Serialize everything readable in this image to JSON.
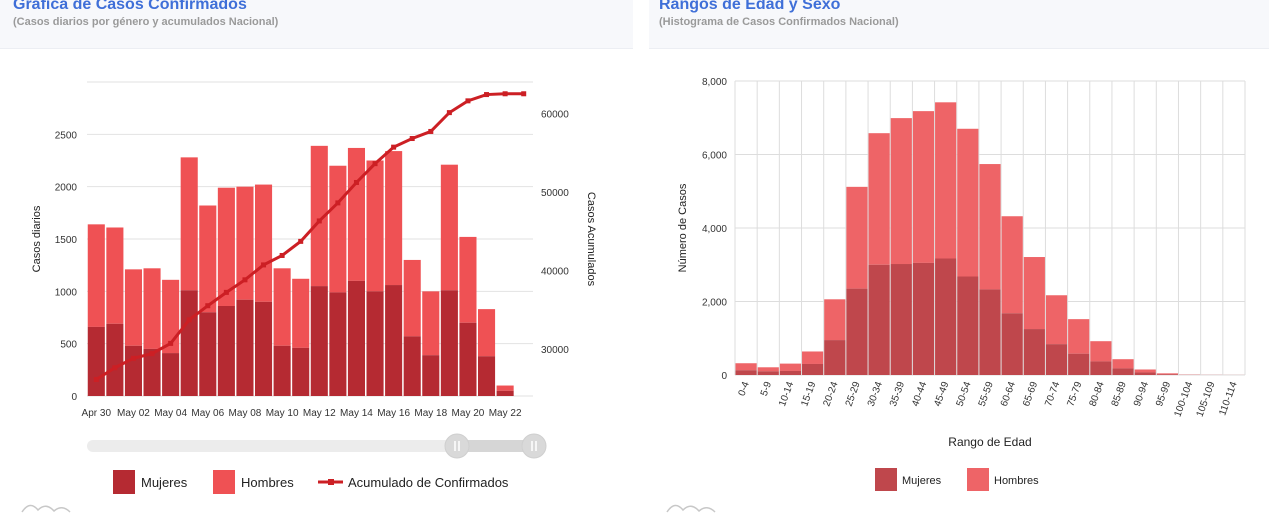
{
  "left_panel": {
    "title": "Gráfica de Casos Confirmados",
    "subtitle": "(Casos diarios por género y acumulados Nacional)"
  },
  "right_panel": {
    "title": "Rangos de Edad y Sexo",
    "subtitle": "(Histograma de Casos Confirmados Nacional)"
  },
  "chart_data": [
    {
      "type": "bar",
      "stacked": true,
      "categories": [
        "Apr 30",
        "May 01",
        "May 02",
        "May 03",
        "May 04",
        "May 05",
        "May 06",
        "May 07",
        "May 08",
        "May 09",
        "May 10",
        "May 11",
        "May 12",
        "May 13",
        "May 14",
        "May 15",
        "May 16",
        "May 17",
        "May 18",
        "May 19",
        "May 20",
        "May 21",
        "May 22",
        "May 23"
      ],
      "x_tick_labels": [
        "Apr 30",
        "May 02",
        "May 04",
        "May 06",
        "May 08",
        "May 10",
        "May 12",
        "May 14",
        "May 16",
        "May 18",
        "May 20",
        "May 22"
      ],
      "series": [
        {
          "name": "Mujeres",
          "color": "#b52a32",
          "values": [
            660,
            690,
            480,
            450,
            410,
            1010,
            800,
            860,
            920,
            900,
            480,
            460,
            1050,
            990,
            1100,
            1000,
            1060,
            570,
            390,
            1010,
            700,
            380,
            50,
            0
          ]
        },
        {
          "name": "Hombres",
          "color": "#ef5154",
          "values": [
            980,
            920,
            730,
            770,
            700,
            1270,
            1020,
            1130,
            1080,
            1120,
            740,
            660,
            1340,
            1210,
            1270,
            1250,
            1280,
            730,
            610,
            1200,
            820,
            450,
            50,
            0
          ]
        },
        {
          "name": "Acumulado de Confirmados",
          "type": "line",
          "axis": "right",
          "color": "#cc1f24",
          "values": [
            26100,
            27600,
            28800,
            29400,
            30700,
            33700,
            35500,
            37200,
            38800,
            40700,
            41900,
            43700,
            46300,
            48600,
            51200,
            53600,
            55700,
            56800,
            57700,
            60100,
            61600,
            62400,
            62500,
            62500
          ]
        }
      ],
      "ylabel": "Casos diarios",
      "ylim": [
        0,
        3000
      ],
      "yticks": [
        0,
        500,
        1000,
        1500,
        2000,
        2500
      ],
      "ylabel_right": "Casos Acumulados",
      "ylim_right": [
        24000,
        64000
      ],
      "yticks_right": [
        30000,
        40000,
        50000,
        60000
      ],
      "grid": true,
      "legend": "bottom",
      "legend_items": [
        "Mujeres",
        "Hombres",
        "Acumulado de Confirmados"
      ],
      "range_slider": true
    },
    {
      "type": "bar",
      "stacked": true,
      "categories": [
        "0-4",
        "5-9",
        "10-14",
        "15-19",
        "20-24",
        "25-29",
        "30-34",
        "35-39",
        "40-44",
        "45-49",
        "50-54",
        "55-59",
        "60-64",
        "65-69",
        "70-74",
        "75-79",
        "80-84",
        "85-89",
        "90-94",
        "95-99",
        "100-104",
        "105-109",
        "110-114"
      ],
      "series": [
        {
          "name": "Mujeres",
          "color": "#bf474c",
          "values": [
            130,
            100,
            110,
            300,
            950,
            2350,
            3000,
            3020,
            3050,
            3170,
            2680,
            2330,
            1680,
            1250,
            840,
            580,
            370,
            180,
            70,
            20,
            5,
            2,
            1
          ]
        },
        {
          "name": "Hombres",
          "color": "#ee6467",
          "values": [
            190,
            110,
            200,
            340,
            1110,
            2770,
            3580,
            3970,
            4130,
            4250,
            4020,
            3410,
            2640,
            1960,
            1330,
            940,
            550,
            250,
            80,
            25,
            5,
            2,
            1
          ]
        }
      ],
      "xlabel": "Rango de Edad",
      "ylabel": "Número de Casos",
      "ylim": [
        0,
        8000
      ],
      "yticks": [
        "0",
        "2,000",
        "4,000",
        "6,000",
        "8,000"
      ],
      "grid": true,
      "legend": "bottom",
      "legend_items": [
        "Mujeres",
        "Hombres"
      ]
    }
  ]
}
